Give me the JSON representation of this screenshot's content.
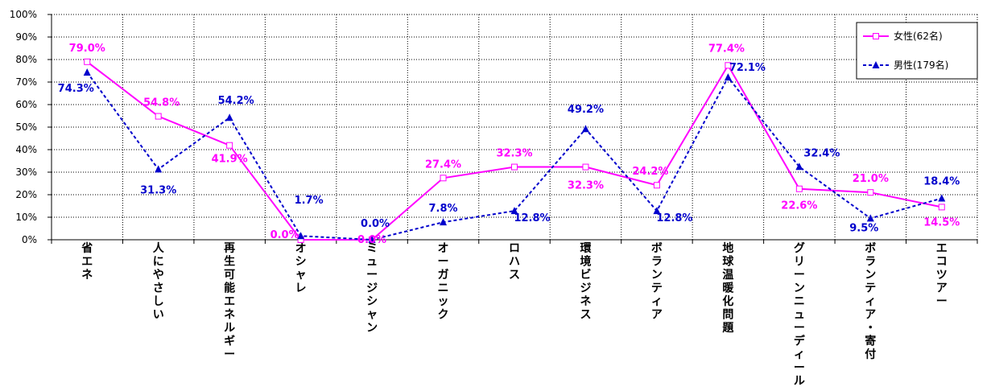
{
  "chart_data": {
    "type": "line",
    "categories": [
      "省エネ",
      "人にやさしい",
      "再生可能エネルギー",
      "オシャレ",
      "ミュージシャン",
      "オーガニック",
      "ロハス",
      "環境ビジネス",
      "ボランティア",
      "地球温暖化問題",
      "グリーンニューディール",
      "ボランティア・寄付",
      "エコツアー"
    ],
    "series": [
      {
        "name": "女性(62名)",
        "values": [
          79.0,
          54.8,
          41.9,
          0.0,
          0.0,
          27.4,
          32.3,
          32.3,
          24.2,
          77.4,
          22.6,
          21.0,
          14.5
        ],
        "labels": [
          "79.0%",
          "54.8%",
          "41.9%",
          "0.0%",
          "0.0%",
          "27.4%",
          "32.3%",
          "32.3%",
          "24.2%",
          "77.4%",
          "22.6%",
          "21.0%",
          "14.5%"
        ],
        "color": "#ff00ff",
        "style": "solid",
        "marker": "open-square"
      },
      {
        "name": "男性(179名)",
        "values": [
          74.3,
          31.3,
          54.2,
          1.7,
          0.0,
          7.8,
          12.8,
          49.2,
          12.8,
          72.1,
          32.4,
          9.5,
          18.4
        ],
        "labels": [
          "74.3%",
          "31.3%",
          "54.2%",
          "1.7%",
          "0.0%",
          "7.8%",
          "12.8%",
          "49.2%",
          "12.8%",
          "72.1%",
          "32.4%",
          "9.5%",
          "18.4%"
        ],
        "color": "#0000cc",
        "style": "dashed",
        "marker": "filled-triangle"
      }
    ],
    "yticks": [
      "0%",
      "10%",
      "20%",
      "30%",
      "40%",
      "50%",
      "60%",
      "70%",
      "80%",
      "90%",
      "100%"
    ],
    "ylim": [
      0,
      100
    ],
    "grid": true,
    "legend": "top-right"
  }
}
